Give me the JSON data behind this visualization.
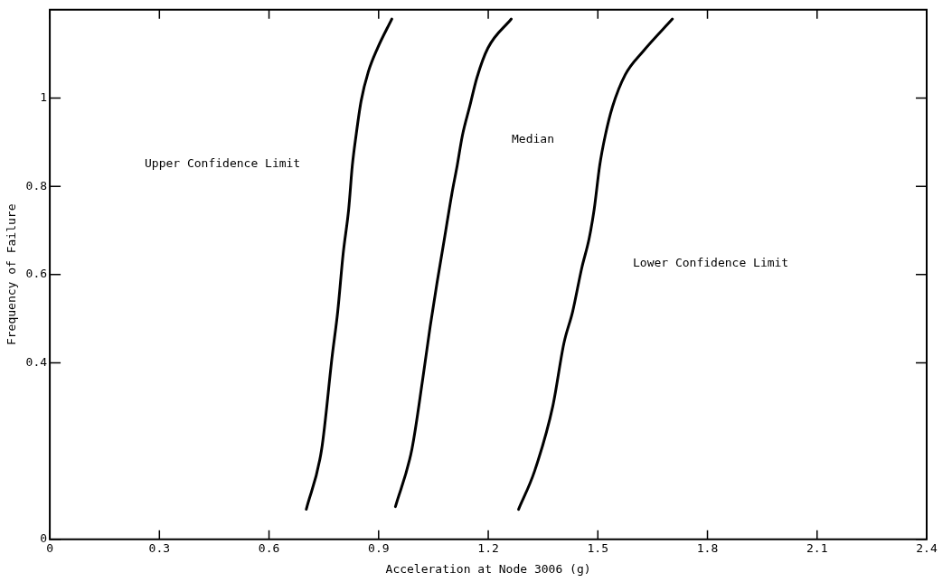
{
  "chart_data": {
    "type": "line",
    "xlabel": "Acceleration at Node 3006 (g)",
    "ylabel": "Frequency of Failure",
    "xlim": [
      0,
      2.4
    ],
    "xticks": [
      0,
      0.3,
      0.6,
      0.9,
      1.2,
      1.5,
      1.8,
      2.1,
      2.4
    ],
    "ylim": [
      0,
      1.2
    ],
    "yticks": [
      0,
      0.4,
      0.6,
      0.8,
      1.0
    ],
    "grid": false,
    "legend": false,
    "marker": "none",
    "line_style": "solid",
    "series": [
      {
        "color": "#000000",
        "x": [
          0.702,
          0.744,
          0.773,
          0.788,
          0.803,
          0.818,
          0.828,
          0.838,
          0.852,
          0.872,
          0.897,
          0.936
        ],
        "values": [
          0.068,
          0.204,
          0.416,
          0.516,
          0.648,
          0.748,
          0.847,
          0.914,
          0.993,
          1.06,
          1.113,
          1.179
        ]
      },
      {
        "color": "#000000",
        "x": [
          0.946,
          0.991,
          1.021,
          1.041,
          1.06,
          1.08,
          1.1,
          1.115,
          1.129,
          1.149,
          1.169,
          1.199,
          1.263
        ],
        "values": [
          0.074,
          0.204,
          0.365,
          0.482,
          0.582,
          0.681,
          0.781,
          0.847,
          0.914,
          0.98,
          1.046,
          1.113,
          1.179
        ]
      },
      {
        "color": "#000000",
        "x": [
          1.283,
          1.327,
          1.377,
          1.407,
          1.431,
          1.456,
          1.476,
          1.49,
          1.505,
          1.52,
          1.54,
          1.575,
          1.624,
          1.704
        ],
        "values": [
          0.068,
          0.155,
          0.303,
          0.444,
          0.516,
          0.615,
          0.681,
          0.748,
          0.847,
          0.914,
          0.98,
          1.053,
          1.106,
          1.179
        ]
      }
    ],
    "annotations": [
      "Upper Confidence Limit",
      "Median",
      "Lower Confidence Limit"
    ]
  }
}
